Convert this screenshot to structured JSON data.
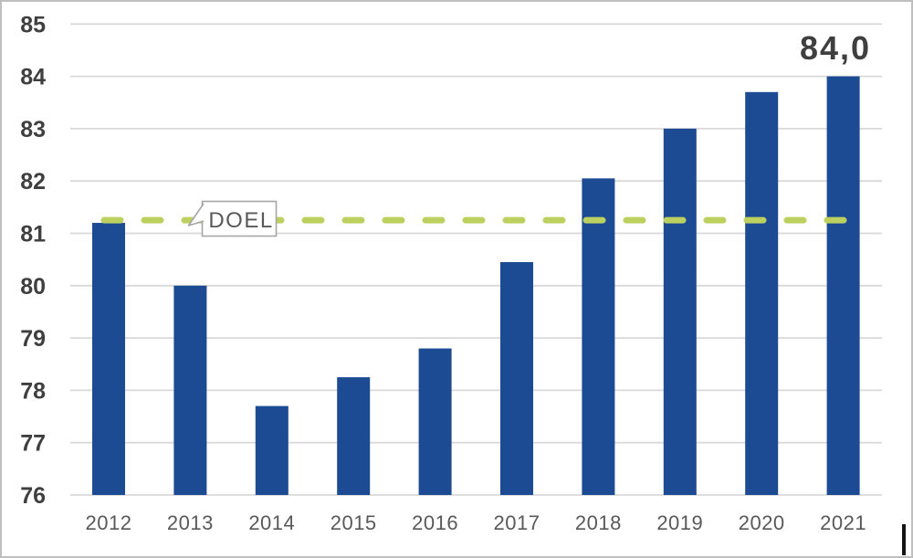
{
  "chart_data": {
    "type": "bar",
    "title": "",
    "xlabel": "",
    "ylabel": "",
    "categories": [
      "2012",
      "2013",
      "2014",
      "2015",
      "2016",
      "2017",
      "2018",
      "2019",
      "2020",
      "2021"
    ],
    "values": [
      81.2,
      80.0,
      77.7,
      78.25,
      78.8,
      80.45,
      82.05,
      83.0,
      83.7,
      84.0
    ],
    "ylim": [
      76,
      85
    ],
    "yticks": [
      85,
      84,
      83,
      82,
      81,
      80,
      79,
      78,
      77,
      76
    ],
    "grid": true,
    "legend": "none",
    "bar_color": "#1C4B94",
    "goal_line": {
      "value": 81.25,
      "label": "DOEL",
      "color": "#BCD05F",
      "style": "dashed"
    },
    "annotation": {
      "text": "84,0",
      "category": "2021",
      "value": 84.0
    }
  },
  "style": {
    "background": "#FFFFFF",
    "frame_border": "#BFBFBF",
    "gridline_color": "#D9D9D9",
    "ytick_color": "#3F3F3F",
    "xtick_color": "#595959",
    "callout_border": "#A6A6A6",
    "callout_fill": "#FFFFFF",
    "callout_text_color": "#595959",
    "annotation_color": "#3F3F3F"
  }
}
